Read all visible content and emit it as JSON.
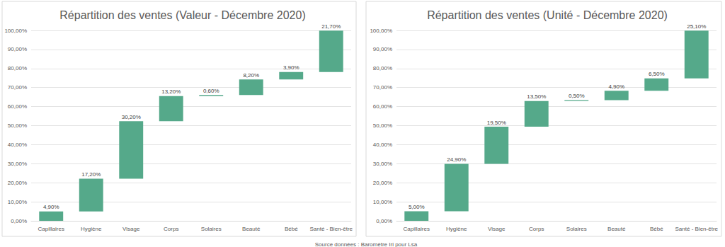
{
  "chart_data": [
    {
      "type": "waterfall",
      "title": "Répartition des ventes (Valeur - Décembre 2020)",
      "categories": [
        "Capillaires",
        "Hygiène",
        "Visage",
        "Corps",
        "Solaires",
        "Beauté",
        "Bébé",
        "Santé - Bien-être"
      ],
      "values": [
        4.9,
        17.2,
        30.2,
        13.2,
        0.6,
        8.2,
        3.9,
        21.7
      ],
      "value_labels": [
        "4,90%",
        "17,20%",
        "30,20%",
        "13,20%",
        "0,60%",
        "8,20%",
        "3,90%",
        "21,70%"
      ],
      "color": "#55a98a",
      "ylim": [
        0,
        100
      ],
      "yticks": [
        {
          "value": 0,
          "label": "0,00%"
        },
        {
          "value": 10,
          "label": "10,00%"
        },
        {
          "value": 20,
          "label": "20,00%"
        },
        {
          "value": 30,
          "label": "30,00%"
        },
        {
          "value": 40,
          "label": "40,00%"
        },
        {
          "value": 50,
          "label": "50,00%"
        },
        {
          "value": 60,
          "label": "60,00%"
        },
        {
          "value": 70,
          "label": "70,00%"
        },
        {
          "value": 80,
          "label": "80,00%"
        },
        {
          "value": 90,
          "label": "90,00%"
        },
        {
          "value": 100,
          "label": "100,00%"
        }
      ],
      "grid": true,
      "data_labels": true
    },
    {
      "type": "waterfall",
      "title": "Répartition des ventes (Unité - Décembre 2020)",
      "categories": [
        "Capillaires",
        "Hygiène",
        "Visage",
        "Corps",
        "Solaires",
        "Beauté",
        "Bébé",
        "Santé - Bien-être"
      ],
      "values": [
        5.0,
        24.9,
        19.5,
        13.5,
        0.5,
        4.9,
        6.5,
        25.1
      ],
      "value_labels": [
        "5,00%",
        "24,90%",
        "19,50%",
        "13,50%",
        "0,50%",
        "4,90%",
        "6,50%",
        "25,10%"
      ],
      "color": "#55a98a",
      "ylim": [
        0,
        100
      ],
      "yticks": [
        {
          "value": 0,
          "label": "0,00%"
        },
        {
          "value": 10,
          "label": "10,00%"
        },
        {
          "value": 20,
          "label": "20,00%"
        },
        {
          "value": 30,
          "label": "30,00%"
        },
        {
          "value": 40,
          "label": "40,00%"
        },
        {
          "value": 50,
          "label": "50,00%"
        },
        {
          "value": 60,
          "label": "60,00%"
        },
        {
          "value": 70,
          "label": "70,00%"
        },
        {
          "value": 80,
          "label": "80,00%"
        },
        {
          "value": 90,
          "label": "90,00%"
        },
        {
          "value": 100,
          "label": "100,00%"
        }
      ],
      "grid": true,
      "data_labels": true
    }
  ],
  "source": "Source données : Baromètre Iri pour Lsa"
}
